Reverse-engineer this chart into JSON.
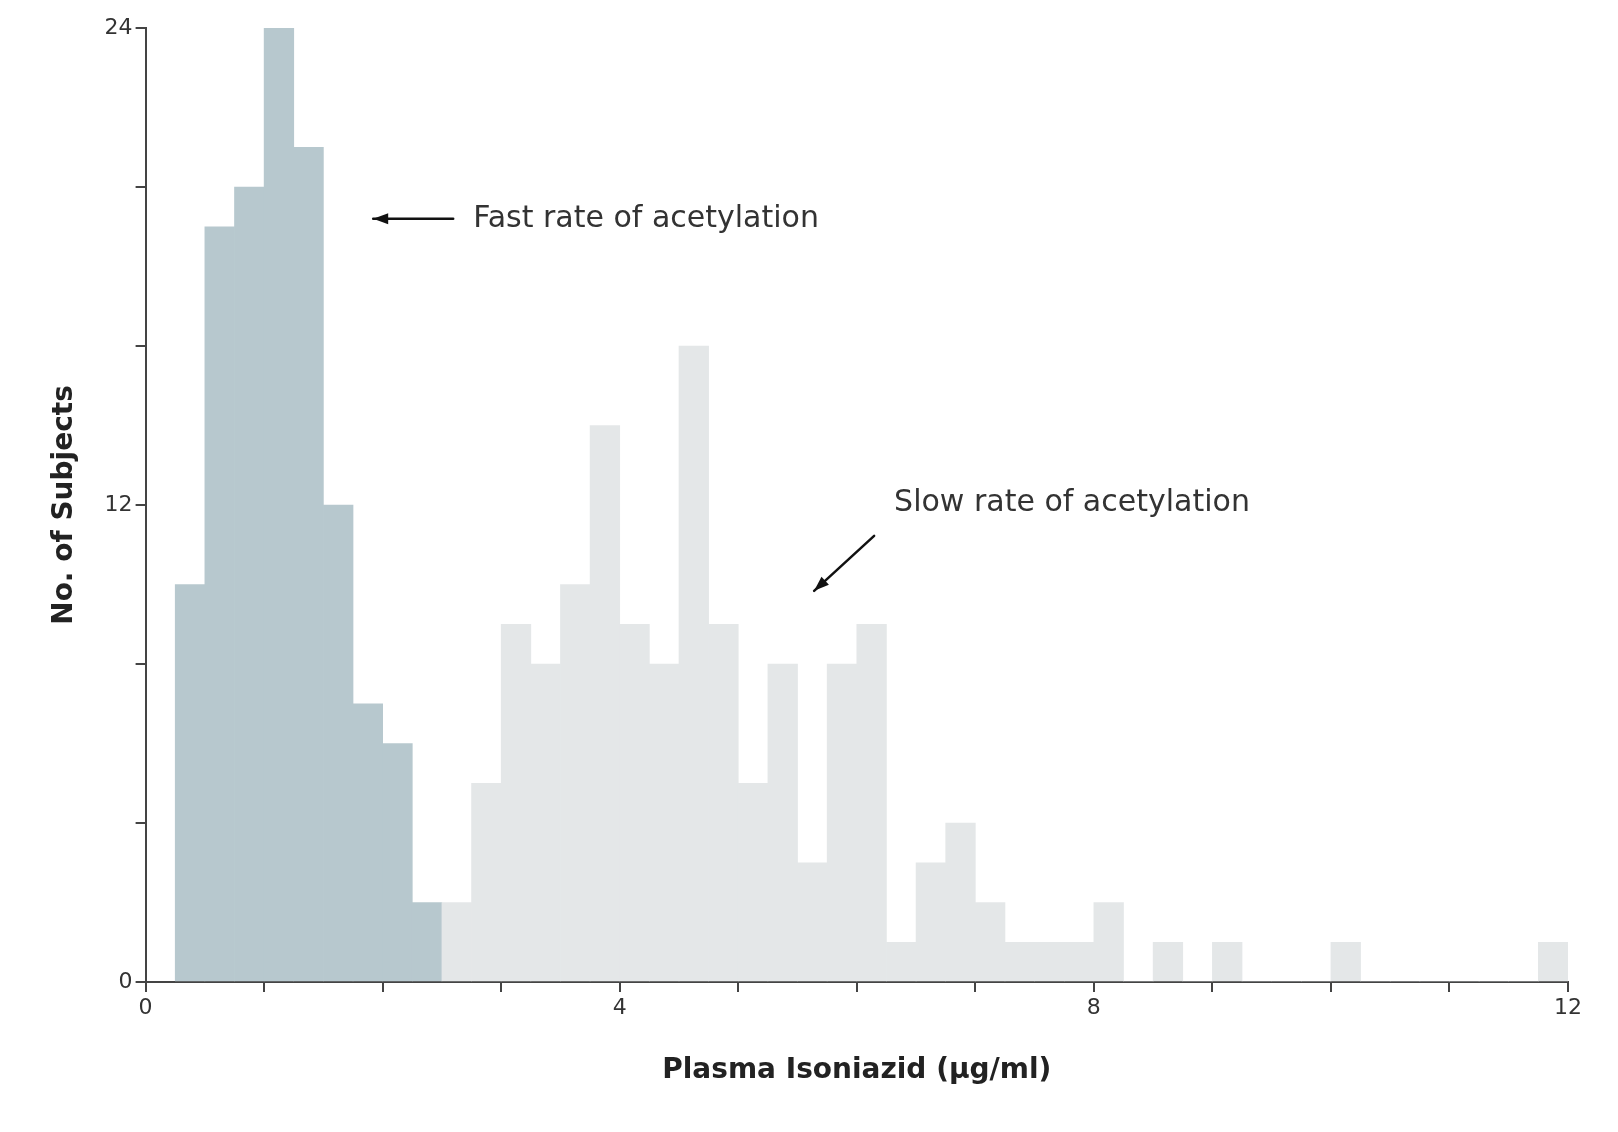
{
  "chart_data": {
    "type": "histogram",
    "xlabel": "Plasma Isoniazid (μg/ml)",
    "ylabel": "No. of Subjects",
    "bins": [
      0.25,
      0.5,
      0.75,
      1,
      1.25,
      1.5,
      1.75,
      2,
      2.25,
      2.5,
      2.75,
      3,
      3.25,
      3.5,
      3.75,
      4,
      4.25,
      4.5,
      4.75,
      5,
      5.25,
      5.5,
      5.75,
      6,
      6.25,
      6.5,
      6.75,
      7,
      7.25,
      7.5,
      7.75,
      8,
      8.25,
      8.5,
      8.75,
      9,
      9.25,
      9.5,
      9.75,
      10,
      10.25,
      10.5,
      10.75,
      11,
      11.25,
      11.5,
      11.75,
      12
    ],
    "values": [
      10,
      19,
      20,
      24,
      21,
      12,
      7,
      6,
      2,
      2,
      5,
      9,
      8,
      10,
      14,
      9,
      8,
      16,
      9,
      5,
      8,
      3,
      8,
      9,
      1,
      3,
      4,
      2,
      1,
      1,
      1,
      2,
      0,
      1,
      0,
      1,
      0,
      0,
      0,
      1,
      0,
      0,
      0,
      0,
      0,
      0,
      1
    ],
    "colors": [
      "#b7c8ce",
      "#b7c8ce",
      "#b7c8ce",
      "#b7c8ce",
      "#b7c8ce",
      "#b7c8ce",
      "#b7c8ce",
      "#b7c8ce",
      "#b7c8ce",
      "#e4e7e8",
      "#e4e7e8",
      "#e4e7e8",
      "#e4e7e8",
      "#e4e7e8",
      "#e4e7e8",
      "#e4e7e8",
      "#e4e7e8",
      "#e4e7e8",
      "#e4e7e8",
      "#e4e7e8",
      "#e4e7e8",
      "#e4e7e8",
      "#e4e7e8",
      "#e4e7e8",
      "#e4e7e8",
      "#e4e7e8",
      "#e4e7e8",
      "#e4e7e8",
      "#e4e7e8",
      "#e4e7e8",
      "#e4e7e8",
      "#e4e7e8",
      "#e4e7e8",
      "#e4e7e8",
      "#e4e7e8",
      "#e4e7e8",
      "#e4e7e8",
      "#e4e7e8",
      "#e4e7e8",
      "#e4e7e8",
      "#e4e7e8",
      "#e4e7e8",
      "#e4e7e8",
      "#e4e7e8",
      "#e4e7e8",
      "#e4e7e8",
      "#e4e7e8"
    ],
    "xlim": [
      0,
      12
    ],
    "xticks": [
      0,
      {
        "value": 1,
        "label": null
      },
      {
        "value": 2,
        "label": null
      },
      {
        "value": 3,
        "label": null
      },
      4,
      {
        "value": 5,
        "label": null
      },
      {
        "value": 6,
        "label": null
      },
      {
        "value": 7,
        "label": null
      },
      8,
      {
        "value": 9,
        "label": null
      },
      {
        "value": 10,
        "label": null
      },
      {
        "value": 11,
        "label": null
      },
      12
    ],
    "ylim": [
      0,
      24
    ],
    "yticks": [
      0,
      {
        "value": 4,
        "label": null
      },
      {
        "value": 8,
        "label": null
      },
      12,
      {
        "value": 16,
        "label": null
      },
      {
        "value": 20,
        "label": null
      },
      24
    ],
    "annotations": [
      "Fast rate of acetylation",
      "Slow rate of acetylation"
    ],
    "grid": false,
    "legend": false
  }
}
